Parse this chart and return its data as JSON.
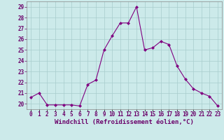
{
  "x": [
    0,
    1,
    2,
    3,
    4,
    5,
    6,
    7,
    8,
    9,
    10,
    11,
    12,
    13,
    14,
    15,
    16,
    17,
    18,
    19,
    20,
    21,
    22,
    23
  ],
  "y": [
    20.6,
    21.0,
    19.9,
    19.9,
    19.9,
    19.9,
    19.8,
    21.8,
    22.2,
    25.0,
    26.3,
    27.5,
    27.5,
    29.0,
    25.0,
    25.2,
    25.8,
    25.5,
    23.5,
    22.3,
    21.4,
    21.0,
    20.7,
    19.8
  ],
  "line_color": "#800080",
  "marker": "D",
  "marker_size": 2.0,
  "line_width": 0.8,
  "xlabel": "Windchill (Refroidissement éolien,°C)",
  "xlabel_fontsize": 6.5,
  "ylim": [
    19.5,
    29.5
  ],
  "xlim": [
    -0.5,
    23.5
  ],
  "yticks": [
    20,
    21,
    22,
    23,
    24,
    25,
    26,
    27,
    28,
    29
  ],
  "xtick_labels": [
    "0",
    "1",
    "2",
    "3",
    "4",
    "5",
    "6",
    "7",
    "8",
    "9",
    "10",
    "11",
    "12",
    "13",
    "14",
    "15",
    "16",
    "17",
    "18",
    "19",
    "20",
    "21",
    "22",
    "23"
  ],
  "tick_fontsize": 5.5,
  "bg_color": "#cceaea",
  "grid_color": "#a8cccc",
  "fig_bg": "#cceaea",
  "spine_color": "#888888",
  "label_color": "#6a006a"
}
